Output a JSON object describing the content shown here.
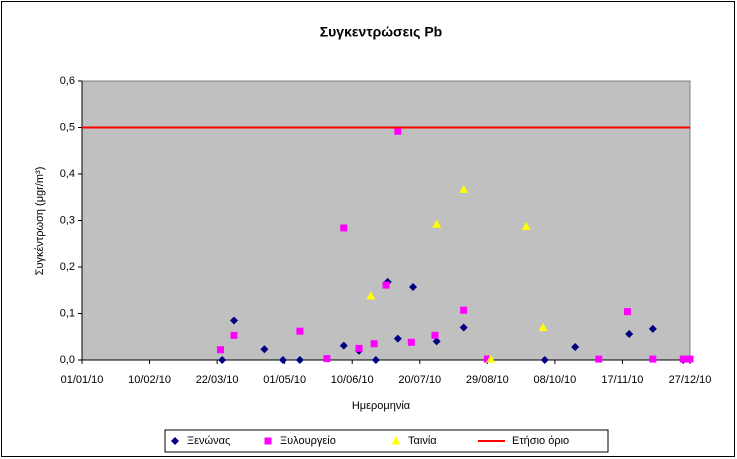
{
  "chart_data": {
    "type": "scatter",
    "title": "Συγκεντρώσεις Pb",
    "xlabel": "Ημερομηνία",
    "ylabel": "Συγκέντρωση (μgr/m³)",
    "xlim": [
      "01/01/10",
      "27/12/10"
    ],
    "xticks": [
      "01/01/10",
      "10/02/10",
      "22/03/10",
      "01/05/10",
      "10/06/10",
      "20/07/10",
      "29/08/10",
      "08/10/10",
      "17/11/10",
      "27/12/10"
    ],
    "ylim": [
      0,
      0.6
    ],
    "yticks": [
      {
        "value": 0,
        "label": "0,0"
      },
      {
        "value": 0.1,
        "label": "0,1"
      },
      {
        "value": 0.2,
        "label": "0,2"
      },
      {
        "value": 0.3,
        "label": "0,3"
      },
      {
        "value": 0.4,
        "label": "0,4"
      },
      {
        "value": 0.5,
        "label": "0,5"
      },
      {
        "value": 0.6,
        "label": "0,6"
      }
    ],
    "plot_background": "#c0c0c0",
    "legend": "bottom",
    "series": [
      {
        "name": "Ξενώνας",
        "color": "#000080",
        "marker": "diamond",
        "x": [
          "25/03/10",
          "01/04/10",
          "19/04/10",
          "30/04/10",
          "10/05/10",
          "05/06/10",
          "14/06/10",
          "24/06/10",
          "01/07/10",
          "07/07/10",
          "16/07/10",
          "30/07/10",
          "15/08/10",
          "02/10/10",
          "20/10/10",
          "21/11/10",
          "05/12/10",
          "23/12/10"
        ],
        "values": [
          0.0,
          0.085,
          0.023,
          0.0,
          0.0,
          0.031,
          0.02,
          0.0,
          0.168,
          0.046,
          0.157,
          0.04,
          0.07,
          0.0,
          0.028,
          0.056,
          0.067,
          0.0
        ]
      },
      {
        "name": "Ξυλουργείο",
        "color": "#ff00ff",
        "marker": "square",
        "x": [
          "24/03/10",
          "01/04/10",
          "10/05/10",
          "26/05/10",
          "05/06/10",
          "14/06/10",
          "23/06/10",
          "30/06/10",
          "07/07/10",
          "15/07/10",
          "29/07/10",
          "15/08/10",
          "29/08/10",
          "03/11/10",
          "20/11/10",
          "05/12/10",
          "23/12/10",
          "27/12/10"
        ],
        "values": [
          0.022,
          0.053,
          0.062,
          0.003,
          0.284,
          0.025,
          0.035,
          0.161,
          0.492,
          0.038,
          0.053,
          0.107,
          0.002,
          0.002,
          0.104,
          0.002,
          0.002,
          0.002
        ]
      },
      {
        "name": "Ταινία",
        "color": "#ffff00",
        "marker": "triangle",
        "x": [
          "21/06/10",
          "30/07/10",
          "15/08/10",
          "31/08/10",
          "21/09/10",
          "01/10/10"
        ],
        "values": [
          0.138,
          0.292,
          0.367,
          0.002,
          0.287,
          0.07
        ]
      },
      {
        "name": "Ετήσιο όριο",
        "color": "#ff0000",
        "marker": "hline",
        "values": [
          0.5
        ]
      }
    ]
  }
}
